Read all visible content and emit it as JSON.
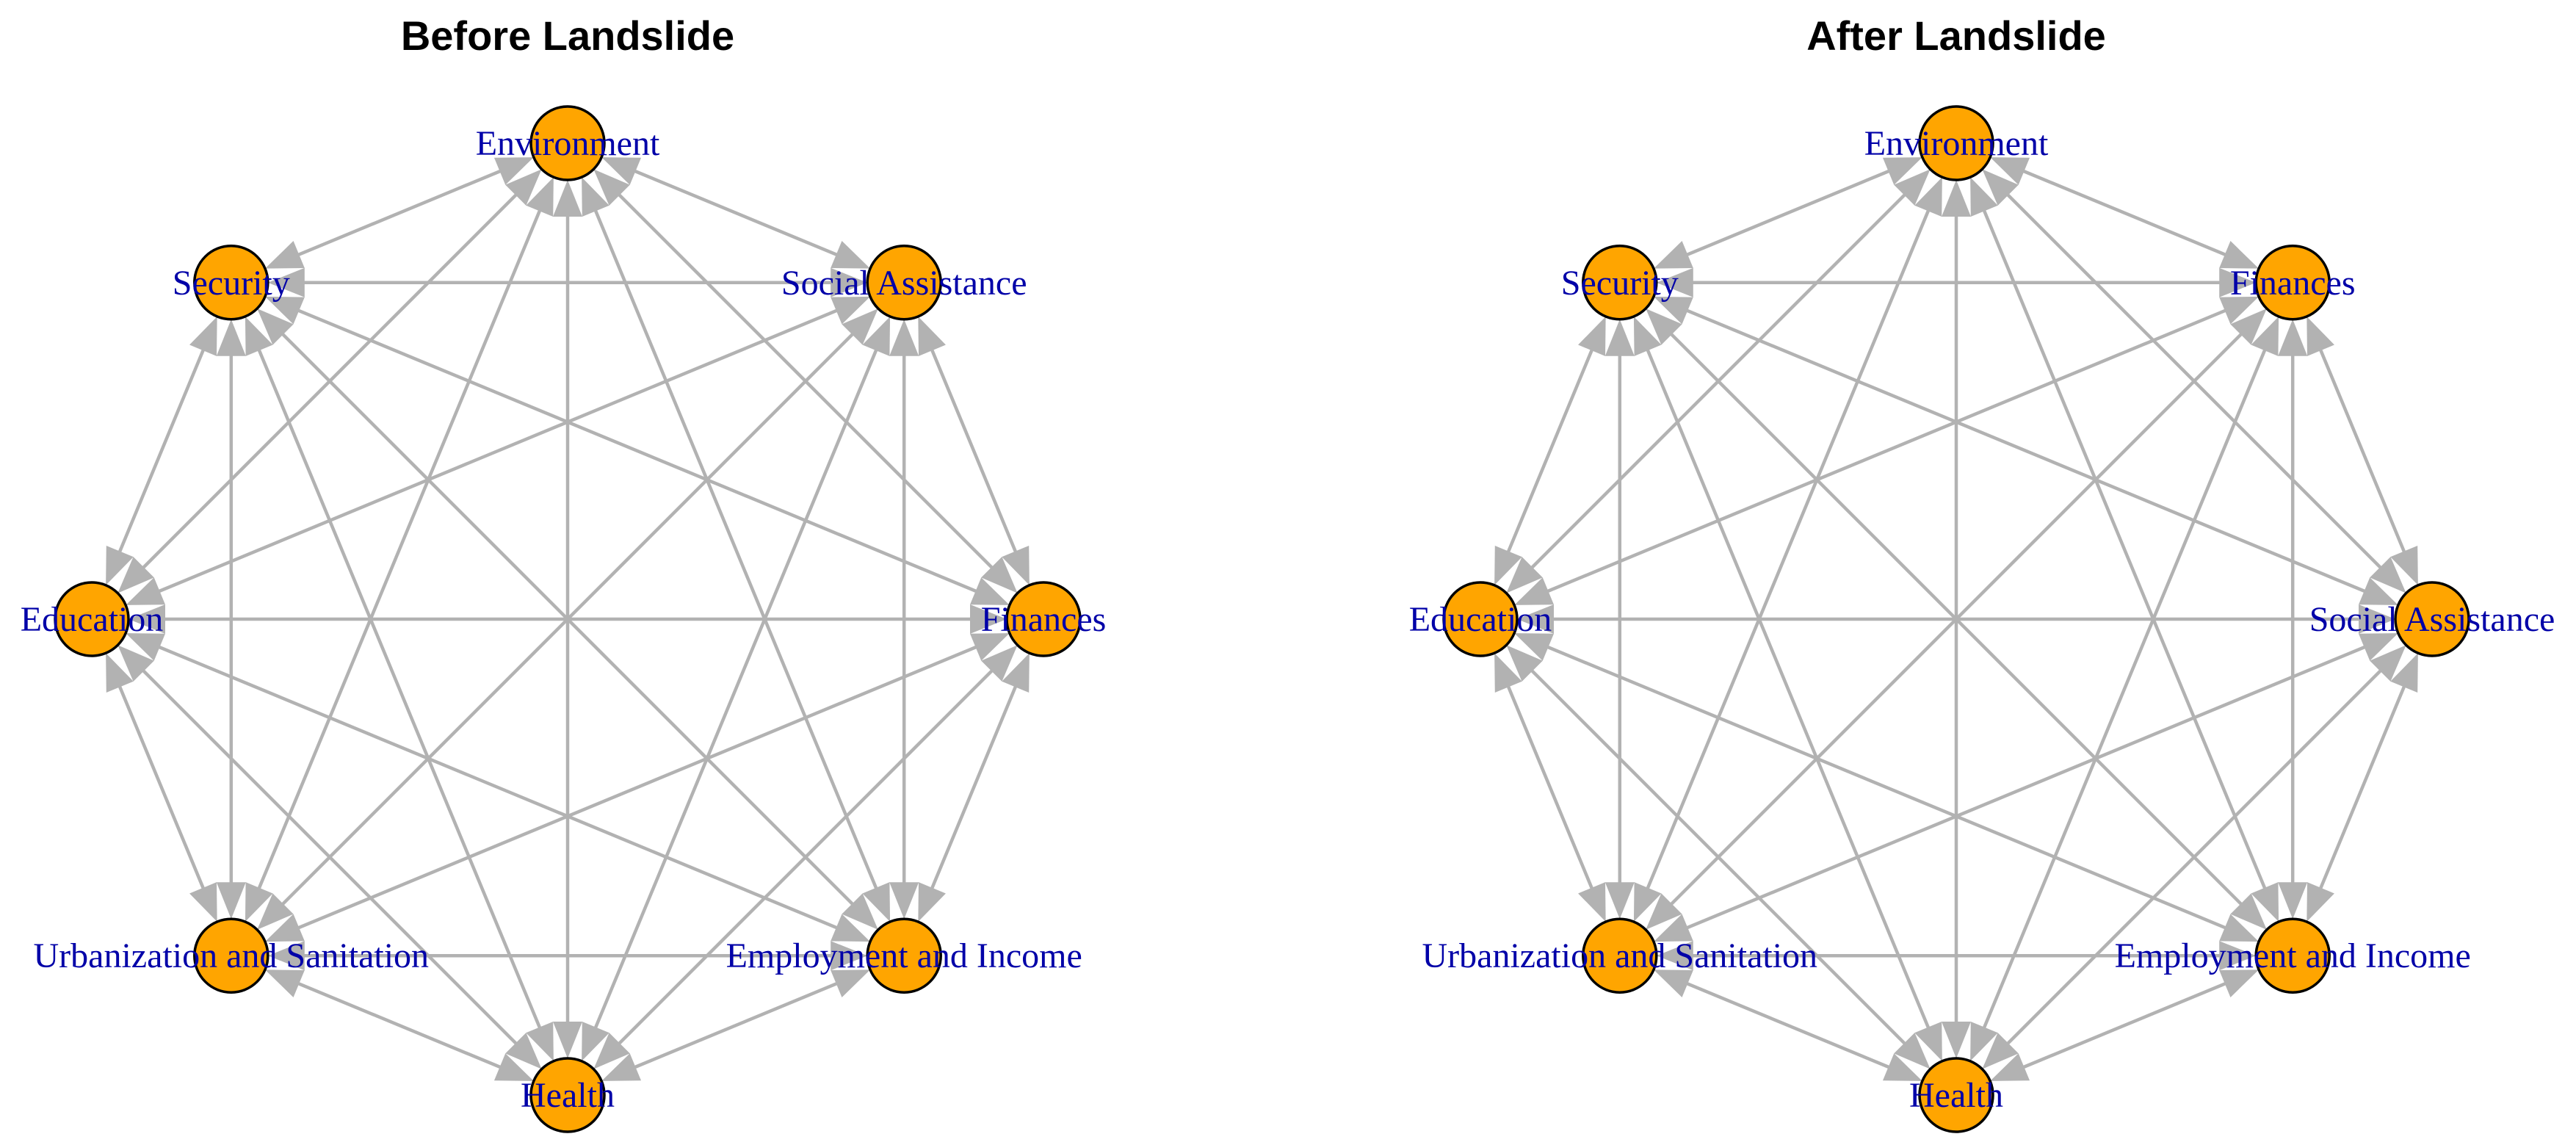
{
  "panels": [
    {
      "title": "Before Landslide",
      "nodes": [
        "Environment",
        "Social Assistance",
        "Finances",
        "Employment and Income",
        "Health",
        "Urbanization and Sanitation",
        "Education",
        "Security"
      ]
    },
    {
      "title": "After Landslide",
      "nodes": [
        "Environment",
        "Finances",
        "Social Assistance",
        "Employment and Income",
        "Health",
        "Urbanization and Sanitation",
        "Education",
        "Security"
      ]
    }
  ],
  "colors": {
    "node_fill": "#ffa500",
    "node_border": "#000000",
    "label": "#0000a8",
    "edge": "#b2b2b2"
  }
}
